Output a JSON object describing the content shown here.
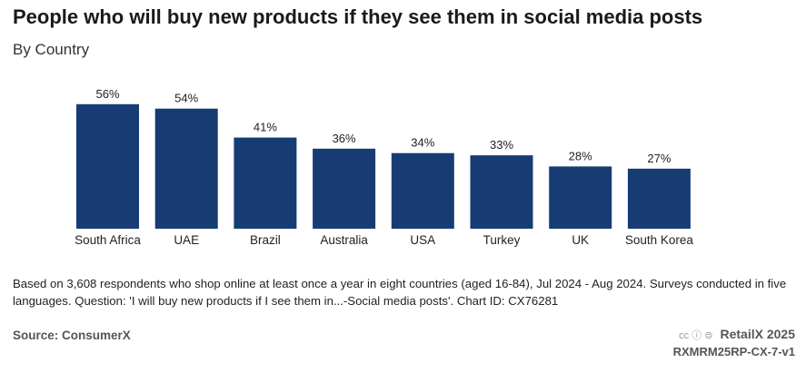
{
  "chart_data": {
    "type": "bar",
    "title": "People who will buy new products if they see them in social media posts",
    "subtitle": "By Country",
    "categories": [
      "South Africa",
      "UAE",
      "Brazil",
      "Australia",
      "USA",
      "Turkey",
      "UK",
      "South Korea"
    ],
    "values": [
      56,
      54,
      41,
      36,
      34,
      33,
      28,
      27
    ],
    "value_labels": [
      "56%",
      "54%",
      "41%",
      "36%",
      "34%",
      "33%",
      "28%",
      "27%"
    ],
    "xlabel": "",
    "ylabel": "",
    "ylim": [
      0,
      60
    ],
    "grid": false,
    "color": "#173c74"
  },
  "footer": {
    "note": "Based on 3,608 respondents who shop online at least once a year in eight countries (aged 16-84), Jul 2024 - Aug 2024. Surveys conducted in five languages. Question: 'I will buy new products if I see them in...-Social media posts'. Chart ID: CX76281",
    "source": "Source: ConsumerX",
    "license": "cc ⓘ ⊜",
    "brand": "RetailX 2025",
    "code": "RXMRM25RP-CX-7-v1"
  }
}
